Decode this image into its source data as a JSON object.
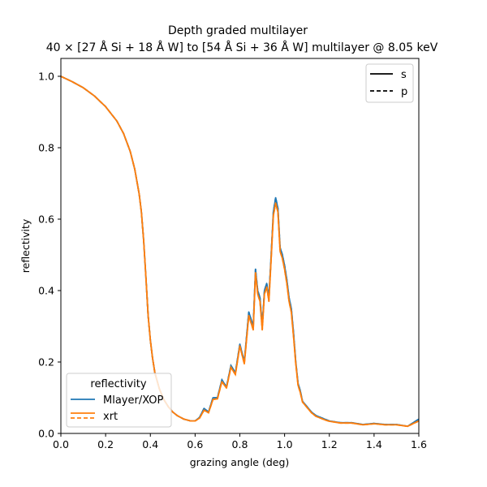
{
  "chart_data": {
    "type": "line",
    "title_line1": "Depth graded multilayer",
    "title_line2": "40 × [27 Å Si + 18 Å W] to [54 Å Si + 36 Å W] multilayer @ 8.05 keV",
    "xlabel": "grazing angle (deg)",
    "ylabel": "reflectivity",
    "xlim": [
      0,
      1.6
    ],
    "ylim": [
      0,
      1.05
    ],
    "xticks": [
      "0.0",
      "0.2",
      "0.4",
      "0.6",
      "0.8",
      "1.0",
      "1.2",
      "1.4",
      "1.6"
    ],
    "yticks": [
      "0.0",
      "0.2",
      "0.4",
      "0.6",
      "0.8",
      "1.0"
    ],
    "style_legend": {
      "placement": "top-right",
      "entries": [
        {
          "label": "s",
          "style": "solid"
        },
        {
          "label": "p",
          "style": "dashed"
        }
      ]
    },
    "series_legend": {
      "placement": "lower-left",
      "title": "reflectivity",
      "entries": [
        {
          "label": "Mlayer/XOP",
          "color": "#1f77b4",
          "style": "solid"
        },
        {
          "label": "xrt",
          "color": "#ff7f0e",
          "style": "solid+dashed"
        }
      ]
    },
    "series": [
      {
        "name": "Mlayer/XOP",
        "color": "#1f77b4",
        "x": [
          0.0,
          0.05,
          0.1,
          0.15,
          0.2,
          0.25,
          0.28,
          0.31,
          0.33,
          0.35,
          0.36,
          0.37,
          0.38,
          0.39,
          0.4,
          0.41,
          0.42,
          0.44,
          0.46,
          0.48,
          0.5,
          0.52,
          0.55,
          0.58,
          0.6,
          0.62,
          0.64,
          0.66,
          0.68,
          0.7,
          0.72,
          0.74,
          0.76,
          0.78,
          0.8,
          0.82,
          0.84,
          0.86,
          0.87,
          0.88,
          0.89,
          0.9,
          0.91,
          0.92,
          0.93,
          0.94,
          0.95,
          0.96,
          0.97,
          0.98,
          0.99,
          1.0,
          1.01,
          1.02,
          1.03,
          1.04,
          1.05,
          1.06,
          1.07,
          1.08,
          1.1,
          1.12,
          1.14,
          1.16,
          1.18,
          1.2,
          1.25,
          1.3,
          1.35,
          1.4,
          1.45,
          1.5,
          1.55,
          1.6
        ],
        "y": [
          1.0,
          0.985,
          0.968,
          0.945,
          0.915,
          0.875,
          0.84,
          0.79,
          0.74,
          0.67,
          0.62,
          0.54,
          0.44,
          0.33,
          0.26,
          0.21,
          0.17,
          0.125,
          0.095,
          0.075,
          0.06,
          0.05,
          0.04,
          0.035,
          0.035,
          0.045,
          0.07,
          0.06,
          0.1,
          0.1,
          0.15,
          0.13,
          0.19,
          0.17,
          0.25,
          0.2,
          0.34,
          0.3,
          0.46,
          0.4,
          0.38,
          0.3,
          0.4,
          0.42,
          0.38,
          0.5,
          0.62,
          0.66,
          0.63,
          0.52,
          0.5,
          0.47,
          0.43,
          0.38,
          0.35,
          0.28,
          0.2,
          0.14,
          0.12,
          0.09,
          0.075,
          0.06,
          0.05,
          0.045,
          0.04,
          0.035,
          0.03,
          0.03,
          0.025,
          0.028,
          0.025,
          0.025,
          0.02,
          0.04
        ]
      },
      {
        "name": "xrt",
        "color": "#ff7f0e",
        "x": [
          0.0,
          0.05,
          0.1,
          0.15,
          0.2,
          0.25,
          0.28,
          0.31,
          0.33,
          0.35,
          0.36,
          0.37,
          0.38,
          0.39,
          0.4,
          0.41,
          0.42,
          0.44,
          0.46,
          0.48,
          0.5,
          0.52,
          0.55,
          0.58,
          0.6,
          0.62,
          0.64,
          0.66,
          0.68,
          0.7,
          0.72,
          0.74,
          0.76,
          0.78,
          0.8,
          0.82,
          0.84,
          0.86,
          0.87,
          0.88,
          0.89,
          0.9,
          0.91,
          0.92,
          0.93,
          0.94,
          0.95,
          0.96,
          0.97,
          0.98,
          0.99,
          1.0,
          1.01,
          1.02,
          1.03,
          1.04,
          1.05,
          1.06,
          1.07,
          1.08,
          1.1,
          1.12,
          1.14,
          1.16,
          1.18,
          1.2,
          1.25,
          1.3,
          1.35,
          1.4,
          1.45,
          1.5,
          1.55,
          1.6
        ],
        "y": [
          1.0,
          0.985,
          0.968,
          0.945,
          0.915,
          0.875,
          0.84,
          0.79,
          0.74,
          0.67,
          0.62,
          0.54,
          0.44,
          0.33,
          0.26,
          0.21,
          0.17,
          0.125,
          0.095,
          0.075,
          0.06,
          0.05,
          0.04,
          0.035,
          0.035,
          0.043,
          0.065,
          0.058,
          0.095,
          0.097,
          0.145,
          0.127,
          0.185,
          0.165,
          0.245,
          0.195,
          0.33,
          0.29,
          0.45,
          0.39,
          0.37,
          0.29,
          0.39,
          0.41,
          0.37,
          0.49,
          0.61,
          0.645,
          0.62,
          0.51,
          0.49,
          0.46,
          0.42,
          0.37,
          0.34,
          0.27,
          0.195,
          0.135,
          0.115,
          0.088,
          0.073,
          0.058,
          0.048,
          0.043,
          0.038,
          0.034,
          0.029,
          0.029,
          0.024,
          0.027,
          0.024,
          0.024,
          0.02,
          0.035
        ]
      }
    ]
  }
}
